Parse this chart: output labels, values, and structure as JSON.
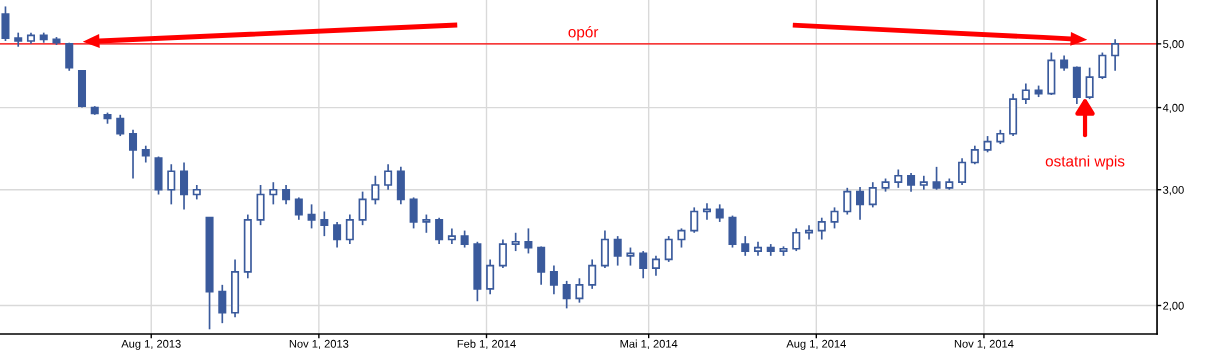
{
  "chart_data": {
    "type": "candlestick",
    "x": [
      "2013-05-13",
      "2013-05-20",
      "2013-05-27",
      "2013-06-03",
      "2013-06-10",
      "2013-06-17",
      "2013-06-24",
      "2013-07-01",
      "2013-07-08",
      "2013-07-15",
      "2013-07-22",
      "2013-07-29",
      "2013-08-05",
      "2013-08-12",
      "2013-08-19",
      "2013-08-26",
      "2013-09-02",
      "2013-09-09",
      "2013-09-16",
      "2013-09-23",
      "2013-09-30",
      "2013-10-07",
      "2013-10-14",
      "2013-10-21",
      "2013-10-28",
      "2013-11-04",
      "2013-11-11",
      "2013-11-18",
      "2013-11-25",
      "2013-12-02",
      "2013-12-09",
      "2013-12-16",
      "2013-12-23",
      "2013-12-30",
      "2014-01-06",
      "2014-01-13",
      "2014-01-20",
      "2014-01-27",
      "2014-02-03",
      "2014-02-10",
      "2014-02-17",
      "2014-02-24",
      "2014-03-03",
      "2014-03-10",
      "2014-03-17",
      "2014-03-24",
      "2014-03-31",
      "2014-04-07",
      "2014-04-14",
      "2014-04-21",
      "2014-04-28",
      "2014-05-05",
      "2014-05-12",
      "2014-05-19",
      "2014-05-26",
      "2014-06-02",
      "2014-06-09",
      "2014-06-16",
      "2014-06-23",
      "2014-06-30",
      "2014-07-07",
      "2014-07-14",
      "2014-07-21",
      "2014-07-28",
      "2014-08-04",
      "2014-08-11",
      "2014-08-18",
      "2014-08-25",
      "2014-09-01",
      "2014-09-08",
      "2014-09-15",
      "2014-09-22",
      "2014-09-29",
      "2014-10-06",
      "2014-10-13",
      "2014-10-20",
      "2014-10-27",
      "2014-11-03",
      "2014-11-10",
      "2014-11-17",
      "2014-11-24",
      "2014-12-01",
      "2014-12-08",
      "2014-12-15",
      "2014-12-22",
      "2014-12-29",
      "2015-01-05",
      "2015-01-12"
    ],
    "ohlc": [
      [
        5.55,
        5.7,
        5.05,
        5.1
      ],
      [
        5.1,
        5.2,
        4.95,
        5.05
      ],
      [
        5.05,
        5.2,
        5.0,
        5.15
      ],
      [
        5.15,
        5.2,
        5.02,
        5.08
      ],
      [
        5.08,
        5.12,
        4.98,
        5.02
      ],
      [
        5.0,
        5.02,
        4.55,
        4.6
      ],
      [
        4.55,
        4.55,
        4.0,
        4.02
      ],
      [
        4.0,
        4.02,
        3.9,
        3.92
      ],
      [
        3.9,
        3.93,
        3.78,
        3.85
      ],
      [
        3.85,
        3.9,
        3.62,
        3.65
      ],
      [
        3.65,
        3.7,
        3.12,
        3.45
      ],
      [
        3.45,
        3.5,
        3.3,
        3.38
      ],
      [
        3.35,
        3.37,
        2.95,
        3.0
      ],
      [
        3.0,
        3.28,
        2.85,
        3.2
      ],
      [
        3.2,
        3.3,
        2.8,
        2.95
      ],
      [
        2.95,
        3.05,
        2.9,
        3.0
      ],
      [
        2.72,
        2.72,
        1.84,
        2.1
      ],
      [
        2.1,
        2.15,
        1.88,
        1.95
      ],
      [
        1.95,
        2.35,
        1.92,
        2.25
      ],
      [
        2.25,
        2.75,
        2.2,
        2.7
      ],
      [
        2.7,
        3.05,
        2.65,
        2.95
      ],
      [
        2.95,
        3.08,
        2.85,
        3.0
      ],
      [
        3.0,
        3.05,
        2.85,
        2.9
      ],
      [
        2.9,
        2.92,
        2.7,
        2.75
      ],
      [
        2.75,
        2.85,
        2.62,
        2.7
      ],
      [
        2.7,
        2.78,
        2.55,
        2.65
      ],
      [
        2.65,
        2.68,
        2.45,
        2.52
      ],
      [
        2.52,
        2.75,
        2.48,
        2.7
      ],
      [
        2.7,
        2.98,
        2.65,
        2.9
      ],
      [
        2.9,
        3.15,
        2.85,
        3.05
      ],
      [
        3.05,
        3.28,
        3.0,
        3.2
      ],
      [
        3.2,
        3.25,
        2.85,
        2.9
      ],
      [
        2.9,
        2.92,
        2.62,
        2.68
      ],
      [
        2.68,
        2.75,
        2.58,
        2.7
      ],
      [
        2.7,
        2.72,
        2.48,
        2.52
      ],
      [
        2.52,
        2.62,
        2.48,
        2.55
      ],
      [
        2.55,
        2.6,
        2.45,
        2.48
      ],
      [
        2.48,
        2.5,
        2.03,
        2.12
      ],
      [
        2.12,
        2.35,
        2.08,
        2.3
      ],
      [
        2.3,
        2.52,
        2.28,
        2.48
      ],
      [
        2.48,
        2.58,
        2.42,
        2.5
      ],
      [
        2.5,
        2.62,
        2.4,
        2.45
      ],
      [
        2.45,
        2.46,
        2.15,
        2.25
      ],
      [
        2.25,
        2.3,
        2.08,
        2.15
      ],
      [
        2.15,
        2.18,
        1.98,
        2.05
      ],
      [
        2.05,
        2.2,
        2.02,
        2.15
      ],
      [
        2.15,
        2.35,
        2.12,
        2.3
      ],
      [
        2.3,
        2.6,
        2.28,
        2.52
      ],
      [
        2.52,
        2.55,
        2.3,
        2.38
      ],
      [
        2.38,
        2.45,
        2.3,
        2.4
      ],
      [
        2.4,
        2.42,
        2.2,
        2.28
      ],
      [
        2.28,
        2.38,
        2.22,
        2.35
      ],
      [
        2.35,
        2.55,
        2.33,
        2.52
      ],
      [
        2.52,
        2.62,
        2.45,
        2.6
      ],
      [
        2.6,
        2.82,
        2.58,
        2.78
      ],
      [
        2.78,
        2.86,
        2.7,
        2.8
      ],
      [
        2.8,
        2.85,
        2.68,
        2.72
      ],
      [
        2.72,
        2.74,
        2.45,
        2.48
      ],
      [
        2.48,
        2.55,
        2.38,
        2.42
      ],
      [
        2.42,
        2.5,
        2.38,
        2.45
      ],
      [
        2.45,
        2.48,
        2.38,
        2.42
      ],
      [
        2.42,
        2.46,
        2.38,
        2.44
      ],
      [
        2.44,
        2.62,
        2.42,
        2.58
      ],
      [
        2.58,
        2.65,
        2.52,
        2.6
      ],
      [
        2.6,
        2.72,
        2.52,
        2.68
      ],
      [
        2.68,
        2.82,
        2.62,
        2.78
      ],
      [
        2.78,
        3.02,
        2.75,
        2.98
      ],
      [
        2.98,
        3.03,
        2.7,
        2.85
      ],
      [
        2.85,
        3.08,
        2.82,
        3.02
      ],
      [
        3.02,
        3.12,
        2.98,
        3.08
      ],
      [
        3.08,
        3.22,
        3.02,
        3.15
      ],
      [
        3.15,
        3.18,
        2.98,
        3.05
      ],
      [
        3.05,
        3.15,
        3.0,
        3.08
      ],
      [
        3.08,
        3.25,
        3.0,
        3.02
      ],
      [
        3.02,
        3.12,
        3.0,
        3.08
      ],
      [
        3.08,
        3.35,
        3.05,
        3.3
      ],
      [
        3.3,
        3.5,
        3.28,
        3.45
      ],
      [
        3.45,
        3.62,
        3.42,
        3.55
      ],
      [
        3.55,
        3.7,
        3.52,
        3.65
      ],
      [
        3.65,
        4.2,
        3.62,
        4.12
      ],
      [
        4.12,
        4.35,
        4.05,
        4.25
      ],
      [
        4.25,
        4.32,
        4.15,
        4.2
      ],
      [
        4.2,
        4.85,
        4.18,
        4.72
      ],
      [
        4.72,
        4.8,
        4.55,
        4.6
      ],
      [
        4.6,
        4.62,
        4.05,
        4.15
      ],
      [
        4.15,
        4.6,
        4.12,
        4.45
      ],
      [
        4.45,
        4.85,
        4.42,
        4.8
      ],
      [
        4.8,
        5.08,
        4.55,
        5.0
      ]
    ],
    "color": "#3a5a9c",
    "log": true,
    "ylim": [
      1.81,
      5.83
    ],
    "yticks": [
      {
        "value": 2,
        "label": "2,00"
      },
      {
        "value": 3,
        "label": "3,00"
      },
      {
        "value": 4,
        "label": "4,00"
      },
      {
        "value": 5,
        "label": "5,00"
      }
    ],
    "xlim": [
      "2013-05-10",
      "2015-02-04"
    ],
    "xticks": [
      {
        "value": "2013-08-01",
        "label": "Aug 1, 2013"
      },
      {
        "value": "2013-11-01",
        "label": "Nov 1, 2013"
      },
      {
        "value": "2014-02-01",
        "label": "Feb 1, 2014"
      },
      {
        "value": "2014-05-01",
        "label": "Mai 1, 2014"
      },
      {
        "value": "2014-08-01",
        "label": "Aug 1, 2014"
      },
      {
        "value": "2014-11-01",
        "label": "Nov 1, 2014"
      }
    ],
    "grid": true,
    "ref_lines": [
      {
        "axis": "y",
        "value": 5,
        "label": "opór",
        "color": "#ff0000"
      }
    ],
    "annotations": [
      "ostatni wpis"
    ]
  }
}
